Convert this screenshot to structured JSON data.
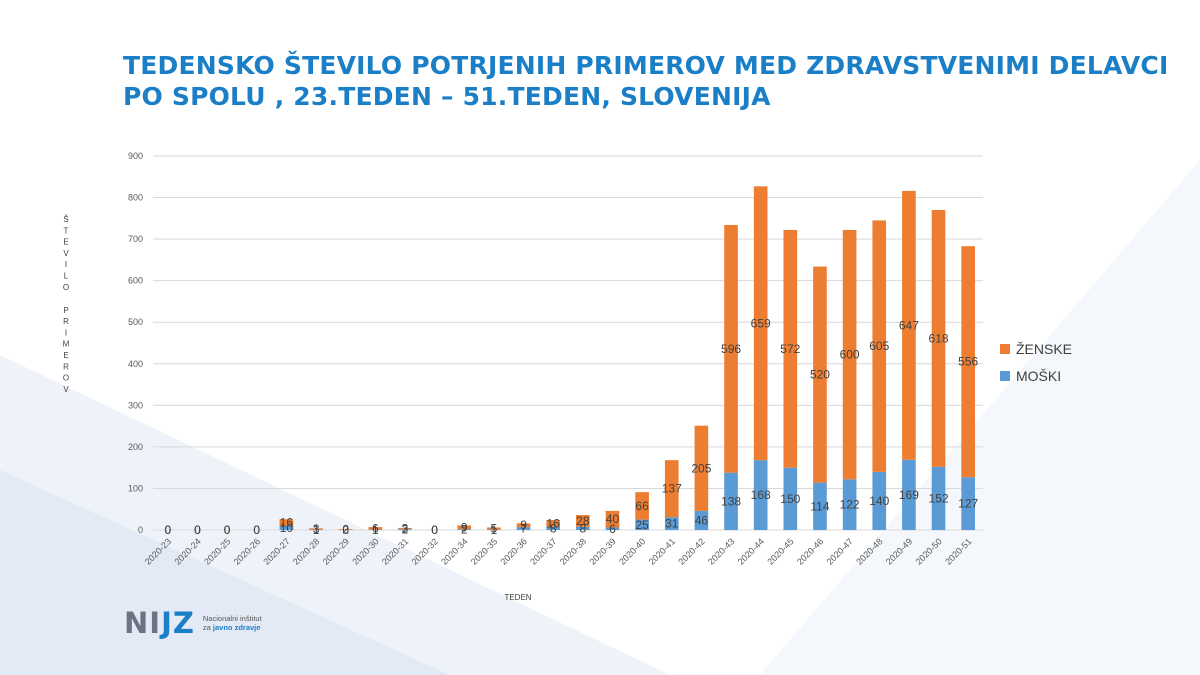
{
  "title_lines": [
    "TEDENSKO ŠTEVILO POTRJENIH PRIMEROV MED ZDRAVSTVENIMI DELAVCI",
    "PO SPOLU , 23.TEDEN – 51.TEDEN, SLOVENIJA"
  ],
  "logo": {
    "mark_a": "NI",
    "mark_b": "JZ",
    "line1": "Nacionalni inštitut",
    "line2_a": "za ",
    "line2_b": "javno zdravje"
  },
  "colors": {
    "male": "#5b9bd5",
    "female": "#ed7d31",
    "title": "#1a7fc6",
    "grid": "#d9d9d9"
  },
  "chart_data": {
    "type": "bar",
    "stacked": true,
    "xlabel": "TEDEN",
    "ylabel": "ŠTEVILO PRIMEROV",
    "ylim": [
      0,
      900
    ],
    "yticks": [
      0,
      100,
      200,
      300,
      400,
      500,
      600,
      700,
      800,
      900
    ],
    "grid": true,
    "legend_position": "right",
    "categories": [
      "2020-23",
      "2020-24",
      "2020-25",
      "2020-26",
      "2020-27",
      "2020-28",
      "2020-29",
      "2020-30",
      "2020-31",
      "2020-32",
      "2020-34",
      "2020-35",
      "2020-36",
      "2020-37",
      "2020-38",
      "2020-39",
      "2020-40",
      "2020-41",
      "2020-42",
      "2020-43",
      "2020-44",
      "2020-45",
      "2020-46",
      "2020-47",
      "2020-48",
      "2020-49",
      "2020-50",
      "2020-51"
    ],
    "series": [
      {
        "name": "MOŠKI",
        "values": [
          0,
          0,
          0,
          0,
          10,
          1,
          0,
          1,
          2,
          0,
          2,
          1,
          7,
          8,
          8,
          6,
          25,
          31,
          46,
          138,
          168,
          150,
          114,
          122,
          140,
          169,
          152,
          127
        ]
      },
      {
        "name": "ŽENSKE",
        "values": [
          0,
          0,
          0,
          0,
          16,
          3,
          2,
          6,
          3,
          0,
          9,
          5,
          9,
          16,
          28,
          40,
          66,
          137,
          205,
          596,
          659,
          572,
          520,
          600,
          605,
          647,
          618,
          556
        ]
      }
    ]
  }
}
